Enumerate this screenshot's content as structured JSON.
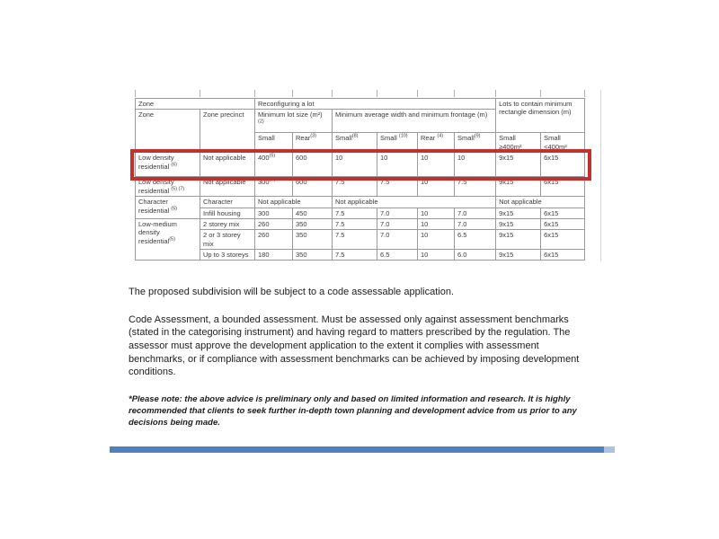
{
  "figure": {
    "header": {
      "zone_group": "Zone",
      "reconfiguring_group": "Reconfiguring a lot",
      "lots_group": "Lots to contain minimum rectangle dimension (m)",
      "zone": "Zone",
      "zone_precinct": "Zone precinct",
      "min_lot_size": {
        "text": "Minimum lot size (m²) ",
        "sup": "(2)"
      },
      "min_avg_width": "Minimum average width and minimum frontage (m)",
      "sub": [
        {
          "text": "Small"
        },
        {
          "text": "Rear",
          "sup": "(3)"
        },
        {
          "text": "Small",
          "sup": "(8)"
        },
        {
          "text": "Small ",
          "sup": "(10)"
        },
        {
          "text": "Rear ",
          "sup": "(4)"
        },
        {
          "text": "Small",
          "sup": "(9)"
        },
        {
          "text": "Small ≥400m²"
        },
        {
          "text": "Small <400m²"
        }
      ]
    },
    "rows": [
      {
        "zone": {
          "text": "Low density residential ",
          "sup": "(6)"
        },
        "precinct": "Not applicable",
        "c": [
          {
            "text": "400",
            "sup": "(5)"
          },
          {
            "text": "600"
          },
          {
            "text": "10"
          },
          {
            "text": "10"
          },
          {
            "text": "10"
          },
          {
            "text": "10"
          },
          {
            "text": "9x15"
          },
          {
            "text": "6x15"
          }
        ]
      },
      {
        "zone": {
          "text": "Low density residential ",
          "sup": "(5) (7)"
        },
        "precinct": "Not applicable",
        "c": [
          {
            "text": "300",
            "sup": "(7)"
          },
          {
            "text": "600"
          },
          {
            "text": "7.5"
          },
          {
            "text": "7.5"
          },
          {
            "text": "10"
          },
          {
            "text": "7.5"
          },
          {
            "text": "9x15"
          },
          {
            "text": "6x15"
          }
        ]
      },
      {
        "zone": {
          "text": "Character residential ",
          "sup": "(5)"
        },
        "precinct": "Character",
        "na_lot_size": "Not applicable",
        "na_width": "Not applicable",
        "na_rect": "Not applicable"
      },
      {
        "precinct": "Infill housing",
        "c": [
          {
            "text": "300"
          },
          {
            "text": "450"
          },
          {
            "text": "7.5"
          },
          {
            "text": "7.0"
          },
          {
            "text": "10"
          },
          {
            "text": "7.0"
          },
          {
            "text": "9x15"
          },
          {
            "text": "6x15"
          }
        ]
      },
      {
        "zone": {
          "text": "Low-medium density residential",
          "sup": "(5)"
        },
        "precinct": "2 storey mix",
        "c": [
          {
            "text": "260"
          },
          {
            "text": "350"
          },
          {
            "text": "7.5"
          },
          {
            "text": "7.0"
          },
          {
            "text": "10"
          },
          {
            "text": "7.0"
          },
          {
            "text": "9x15"
          },
          {
            "text": "6x15"
          }
        ]
      },
      {
        "precinct": "2 or 3 storey mix",
        "c": [
          {
            "text": "260"
          },
          {
            "text": "350"
          },
          {
            "text": "7.5"
          },
          {
            "text": "7.0"
          },
          {
            "text": "10"
          },
          {
            "text": "6.5"
          },
          {
            "text": "9x15"
          },
          {
            "text": "6x15"
          }
        ]
      },
      {
        "precinct": "Up to 3 storeys",
        "c": [
          {
            "text": "180"
          },
          {
            "text": "350"
          },
          {
            "text": "7.5"
          },
          {
            "text": "6.5"
          },
          {
            "text": "10"
          },
          {
            "text": "6.0"
          },
          {
            "text": "9x15"
          },
          {
            "text": "6x15"
          }
        ]
      }
    ],
    "highlight_color": "#c1322e"
  },
  "body": {
    "paragraph1": "The proposed subdivision will be subject to a code assessable application.",
    "paragraph2": "Code Assessment, a bounded assessment. Must be assessed only against assessment benchmarks (stated in the categorising instrument) and having regard to matters prescribed by the regulation. The assessor must approve the development application to the extent it complies with assessment benchmarks, or if compliance with assessment benchmarks can be achieved by imposing development conditions.",
    "note": "*Please note: the above advice is preliminary only and based on limited information and research. It is highly recommended that clients to seek further in-depth town planning and development advice from us prior to any decisions being made."
  },
  "footer": {
    "accent_bar_color": "#4f81bd",
    "accent_bar_tail_color": "#a9c3e2"
  }
}
